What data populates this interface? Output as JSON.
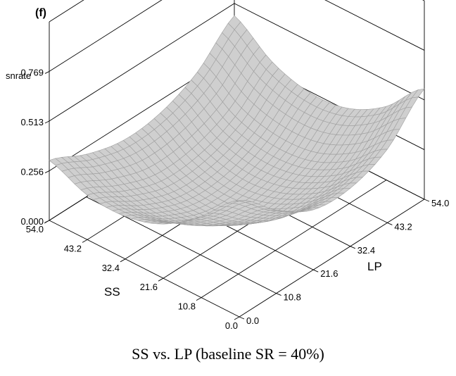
{
  "panel_label": "(f)",
  "caption": "SS vs. LP (baseline SR = 40%)",
  "chart_data": {
    "type": "surface",
    "zlabel": "snrate",
    "xlabel": "SS",
    "ylabel": "LP",
    "x_ticks": [
      "0.0",
      "10.8",
      "21.6",
      "32.4",
      "43.2",
      "54.0"
    ],
    "y_ticks": [
      "0.0",
      "10.8",
      "21.6",
      "32.4",
      "43.2",
      "54.0"
    ],
    "z_ticks": [
      "0.000",
      "0.256",
      "0.513",
      "0.769"
    ],
    "xlim": [
      0,
      54
    ],
    "ylim": [
      0,
      54
    ],
    "zlim": [
      0,
      1.025
    ],
    "x": [
      0,
      10.8,
      21.6,
      32.4,
      43.2,
      54.0
    ],
    "y": [
      0,
      10.8,
      21.6,
      32.4,
      43.2,
      54.0
    ],
    "z": [
      [
        0.6,
        0.43,
        0.31,
        0.3,
        0.38,
        0.57
      ],
      [
        0.42,
        0.27,
        0.16,
        0.15,
        0.22,
        0.38
      ],
      [
        0.28,
        0.15,
        0.05,
        0.05,
        0.12,
        0.27
      ],
      [
        0.22,
        0.1,
        0.02,
        0.02,
        0.1,
        0.25
      ],
      [
        0.23,
        0.13,
        0.06,
        0.07,
        0.15,
        0.31
      ],
      [
        0.31,
        0.22,
        0.17,
        0.19,
        0.28,
        0.45
      ]
    ],
    "colors": {
      "surface": "#9e9e9e",
      "surface_light": "#cfcfcf",
      "frame": "#000000"
    },
    "grid": true
  }
}
